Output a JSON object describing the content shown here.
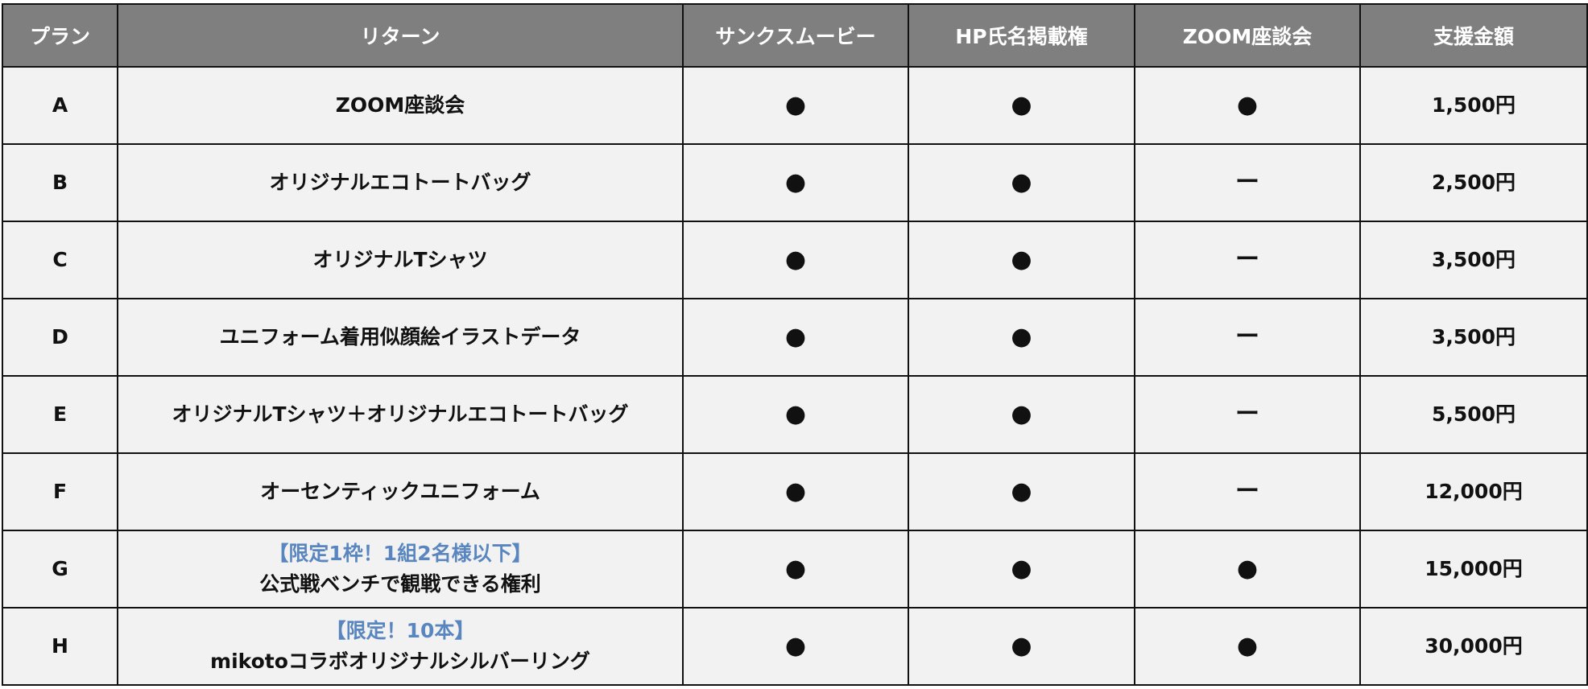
{
  "headers": [
    "プラン",
    "リターン",
    "サンクスムービー",
    "HP氏名掲載権",
    "ZOOM座談会",
    "支援金額"
  ],
  "rows": [
    {
      "plan": "A",
      "note": "",
      "return": "ZOOM座談会",
      "movie": "●",
      "hp": "●",
      "zoom": "●",
      "price": "1,500円"
    },
    {
      "plan": "B",
      "note": "",
      "return": "オリジナルエコトートバッグ",
      "movie": "●",
      "hp": "●",
      "zoom": "ー",
      "price": "2,500円"
    },
    {
      "plan": "C",
      "note": "",
      "return": "オリジナルTシャツ",
      "movie": "●",
      "hp": "●",
      "zoom": "ー",
      "price": "3,500円"
    },
    {
      "plan": "D",
      "note": "",
      "return": "ユニフォーム着用似顔絵イラストデータ",
      "movie": "●",
      "hp": "●",
      "zoom": "ー",
      "price": "3,500円"
    },
    {
      "plan": "E",
      "note": "",
      "return": "オリジナルTシャツ＋オリジナルエコトートバッグ",
      "movie": "●",
      "hp": "●",
      "zoom": "ー",
      "price": "5,500円"
    },
    {
      "plan": "F",
      "note": "",
      "return": "オーセンティックユニフォーム",
      "movie": "●",
      "hp": "●",
      "zoom": "ー",
      "price": "12,000円"
    },
    {
      "plan": "G",
      "note": "【限定1枠！1組2名様以下】",
      "return": "公式戦ベンチで観戦できる権利",
      "movie": "●",
      "hp": "●",
      "zoom": "●",
      "price": "15,000円"
    },
    {
      "plan": "H",
      "note": "【限定！10本】",
      "return": "mikotoコラボオリジナルシルバーリング",
      "movie": "●",
      "hp": "●",
      "zoom": "●",
      "price": "30,000円"
    }
  ],
  "colors": {
    "header_bg": "#7f7f7f",
    "cell_bg": "#f2f2f2",
    "note": "#5a86c0"
  }
}
